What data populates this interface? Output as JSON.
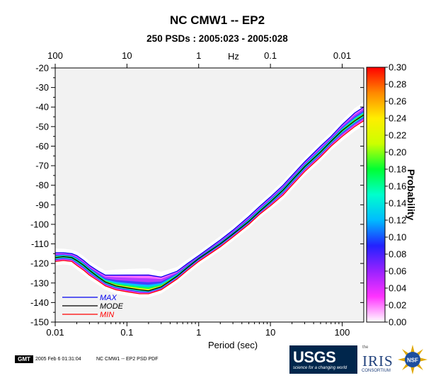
{
  "title": "NC CMW1 -- EP2",
  "subtitle": "250 PSDs : 2005:023 - 2005:028",
  "top_axis": {
    "unit_label": "Hz",
    "ticks": [
      {
        "value": 100,
        "label": "100"
      },
      {
        "value": 10,
        "label": "10"
      },
      {
        "value": 1,
        "label": "1"
      },
      {
        "value": 0.1,
        "label": "0.1"
      },
      {
        "value": 0.01,
        "label": "0.01"
      }
    ]
  },
  "colorbar": {
    "label": "Probability",
    "min": 0.0,
    "max": 0.3,
    "ticks": [
      "0.00",
      "0.02",
      "0.04",
      "0.06",
      "0.08",
      "0.10",
      "0.12",
      "0.14",
      "0.16",
      "0.18",
      "0.20",
      "0.22",
      "0.24",
      "0.26",
      "0.28",
      "0.30"
    ],
    "stops": [
      "#ffffff",
      "#ff33ff",
      "#9922ff",
      "#2222ff",
      "#00bbff",
      "#00ffcc",
      "#00ff33",
      "#ccff00",
      "#ffee00",
      "#ff8800",
      "#ff0000"
    ]
  },
  "legend": {
    "items": [
      {
        "label": "MAX",
        "color": "#0000ee"
      },
      {
        "label": "MODE",
        "color": "#000000"
      },
      {
        "label": "MIN",
        "color": "#ff0000"
      }
    ]
  },
  "footer": {
    "gmt_badge": "GMT",
    "timestamp": "2005 Feb  6 01:31:04",
    "caption": "NC CMW1 -- EP2 PSD PDF"
  },
  "logos": {
    "usgs_mark": "USGS",
    "usgs_tagline": "science for a changing world",
    "iris_the": "the",
    "iris_word": "IRIS",
    "iris_sub": "CONSORTIUM",
    "nsf_text": "NSF"
  },
  "chart_data": {
    "type": "line",
    "xscale": "log",
    "xlabel": "Period (sec)",
    "ylabel": "",
    "xlim": [
      0.01,
      200
    ],
    "ylim": [
      -150,
      -20
    ],
    "xticks": [
      {
        "value": 0.01,
        "label": "0.01"
      },
      {
        "value": 0.1,
        "label": "0.1"
      },
      {
        "value": 1,
        "label": "1"
      },
      {
        "value": 10,
        "label": "10"
      },
      {
        "value": 100,
        "label": "100"
      }
    ],
    "yticks": [
      -20,
      -30,
      -40,
      -50,
      -60,
      -70,
      -80,
      -90,
      -100,
      -110,
      -120,
      -130,
      -140,
      -150
    ],
    "grid": false,
    "legend_position": "bottom-left",
    "x": [
      0.01,
      0.013,
      0.017,
      0.02,
      0.025,
      0.03,
      0.04,
      0.05,
      0.07,
      0.1,
      0.15,
      0.2,
      0.3,
      0.5,
      0.7,
      1,
      2,
      3,
      5,
      7,
      10,
      15,
      20,
      30,
      50,
      70,
      100,
      150,
      200
    ],
    "series": [
      {
        "name": "MAX",
        "color": "#0000ee",
        "values": [
          -114.5,
          -114.5,
          -115,
          -116,
          -118.5,
          -121,
          -124,
          -126,
          -126,
          -126,
          -126,
          -126,
          -127,
          -124,
          -120,
          -116,
          -108,
          -103,
          -96,
          -91,
          -86,
          -80,
          -75,
          -68,
          -60,
          -55,
          -49,
          -43,
          -40
        ]
      },
      {
        "name": "MODE",
        "color": "#000000",
        "values": [
          -117,
          -116.5,
          -117,
          -118.5,
          -121,
          -123.5,
          -127,
          -129.5,
          -131.5,
          -132.5,
          -133.5,
          -134,
          -132,
          -126.5,
          -122,
          -117.5,
          -110,
          -105,
          -98.5,
          -93.5,
          -88.5,
          -82.5,
          -77.5,
          -70.5,
          -63,
          -57.5,
          -52,
          -47,
          -44
        ]
      },
      {
        "name": "MIN",
        "color": "#ff0000",
        "values": [
          -119,
          -118.5,
          -119,
          -121,
          -123.5,
          -126,
          -129,
          -131.5,
          -133.5,
          -134.5,
          -135.5,
          -135.5,
          -133.5,
          -128,
          -123.5,
          -119,
          -111.5,
          -106.5,
          -100,
          -95,
          -90.5,
          -85,
          -80,
          -73,
          -65.5,
          -60,
          -55,
          -50,
          -47
        ]
      }
    ]
  }
}
